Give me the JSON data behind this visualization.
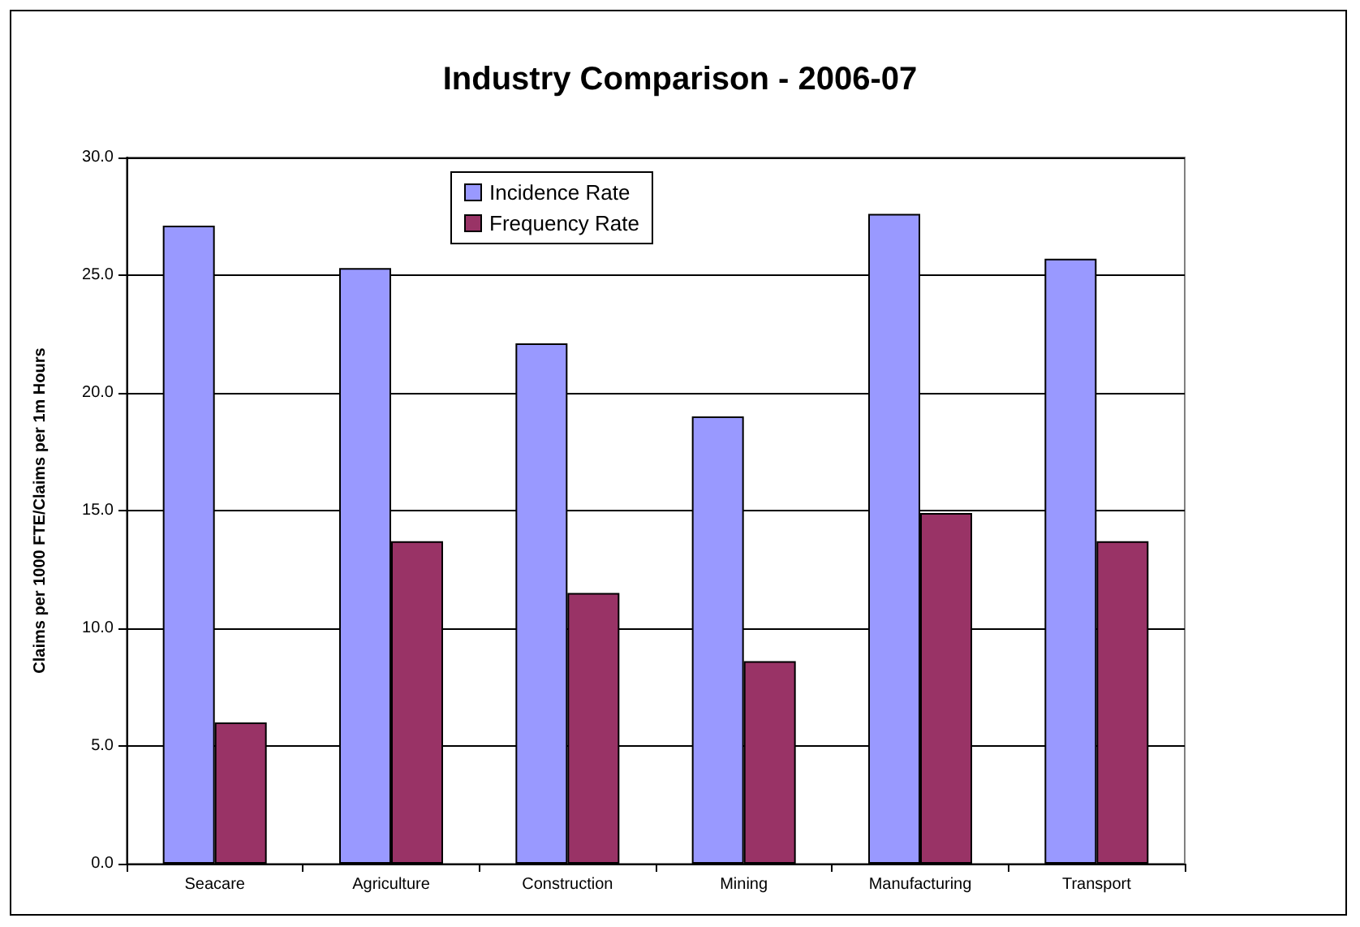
{
  "chart_data": {
    "type": "bar",
    "title": "Industry Comparison - 2006-07",
    "ylabel": "Claims per 1000 FTE/Claims per 1m Hours",
    "categories": [
      "Seacare",
      "Agriculture",
      "Construction",
      "Mining",
      "Manufacturing",
      "Transport"
    ],
    "series": [
      {
        "name": "Incidence Rate",
        "color": "#9999ff",
        "values": [
          27.1,
          25.3,
          22.1,
          19.0,
          27.6,
          25.7
        ]
      },
      {
        "name": "Frequency Rate",
        "color": "#993366",
        "values": [
          6.0,
          13.7,
          11.5,
          8.6,
          14.9,
          13.7
        ]
      }
    ],
    "ylim": [
      0,
      30
    ],
    "yticks": [
      {
        "value": 0,
        "label": "0.0"
      },
      {
        "value": 5,
        "label": "5.0"
      },
      {
        "value": 10,
        "label": "10.0"
      },
      {
        "value": 15,
        "label": "15.0"
      },
      {
        "value": 20,
        "label": "20.0"
      },
      {
        "value": 25,
        "label": "25.0"
      },
      {
        "value": 30,
        "label": "30.0"
      }
    ],
    "grid": "y",
    "legend": "top"
  }
}
